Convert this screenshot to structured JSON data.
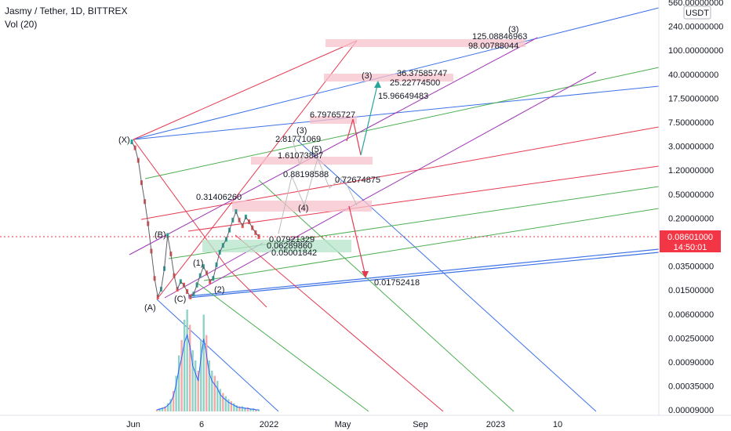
{
  "header": {
    "symbol_line": "Jasmy / Tether, 1D, BITTREX",
    "volume_line": "Vol (20)"
  },
  "currency_badge": "USDT",
  "price_badge": {
    "price": "0.08601000",
    "timer": "14:50:01",
    "color": "#f23645"
  },
  "chart_data": {
    "type": "line",
    "title": "Jasmy / Tether, 1D, BITTREX",
    "yscale": "log",
    "y_tick_labels": [
      "560.00000000",
      "240.00000000",
      "100.00000000",
      "40.00000000",
      "17.50000000",
      "7.50000000",
      "3.00000000",
      "1.20000000",
      "0.50000000",
      "0.20000000",
      "0.08601000",
      "0.03500000",
      "0.01500000",
      "0.00600000",
      "0.00250000",
      "0.00090000",
      "0.00035000",
      "0.00009000"
    ],
    "x_tick_labels": [
      "Jun",
      "6",
      "2022",
      "May",
      "Sep",
      "2023",
      "10"
    ],
    "price_series": [
      3.0,
      2.4,
      1.5,
      0.65,
      0.32,
      0.14,
      0.05,
      0.018,
      0.009,
      0.012,
      0.026,
      0.09,
      0.045,
      0.02,
      0.012,
      0.016,
      0.014,
      0.011,
      0.009,
      0.01,
      0.014,
      0.02,
      0.028,
      0.022,
      0.016,
      0.018,
      0.03,
      0.048,
      0.062,
      0.078,
      0.11,
      0.16,
      0.22,
      0.16,
      0.13,
      0.18,
      0.15,
      0.12,
      0.1,
      0.086
    ],
    "volume_series": [
      0.02,
      0.03,
      0.04,
      0.05,
      0.08,
      0.12,
      0.2,
      0.35,
      0.55,
      0.7,
      0.9,
      1.0,
      0.85,
      0.6,
      0.5,
      0.4,
      0.7,
      0.95,
      0.75,
      0.5,
      0.4,
      0.35,
      0.3,
      0.22,
      0.18,
      0.15,
      0.12,
      0.1,
      0.08,
      0.06,
      0.05,
      0.05,
      0.04,
      0.04,
      0.03,
      0.03,
      0.02,
      0.02
    ],
    "price_labels": [
      "125.08846963",
      "98.00788044",
      "36.37585747",
      "25.22774500",
      "15.96649483",
      "6.79765727",
      "2.81771069",
      "1.61073887",
      "0.88198588",
      "0.72674875",
      "0.31406260",
      "0.07921329",
      "0.06289860",
      "0.05001842",
      "0.01752418"
    ],
    "wave_labels": [
      "(X)",
      "(A)",
      "(B)",
      "(C)",
      "(1)",
      "(2)",
      "(3)",
      "(4)",
      "(5)",
      "(3)",
      "(3)"
    ]
  },
  "colors": {
    "blue": "#3d72e6",
    "green": "#4caf50",
    "red": "#e53950",
    "purple": "#a036b5",
    "pink_zone": "#f7c1cb",
    "green_zone": "#b5e4c9",
    "candle_up": "#26a69a",
    "candle_down": "#ef5350"
  }
}
